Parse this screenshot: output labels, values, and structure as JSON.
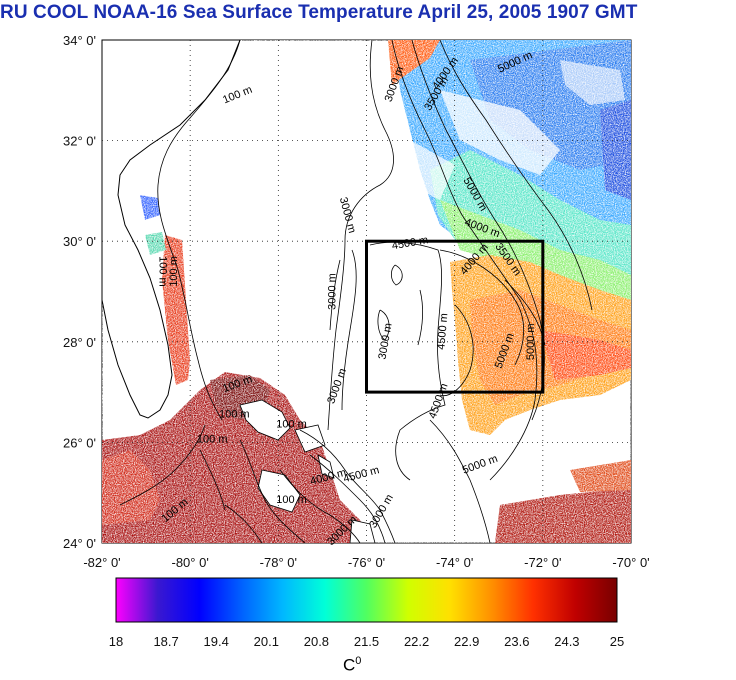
{
  "title": "RU COOL  NOAA-16 Sea Surface Temperature April 25, 2005 1907 GMT",
  "lat_ticks": [
    "34° 0'",
    "32° 0'",
    "30° 0'",
    "28° 0'",
    "26° 0'",
    "24° 0'"
  ],
  "lon_ticks": [
    "-82° 0'",
    "-80° 0'",
    "-78° 0'",
    "-76° 0'",
    "-74° 0'",
    "-72° 0'",
    "-70° 0'"
  ],
  "colorbar": {
    "ticks": [
      "18",
      "18.7",
      "19.4",
      "20.1",
      "20.8",
      "21.5",
      "22.2",
      "22.9",
      "23.6",
      "24.3",
      "25"
    ],
    "unit": "C",
    "unit_sup": "0",
    "min": 18,
    "max": 25,
    "colors": [
      "#ff00ff",
      "#3a18d0",
      "#0000ff",
      "#0060ff",
      "#00b8ff",
      "#00ffd8",
      "#50ff60",
      "#d0ff00",
      "#ffe000",
      "#ff9000",
      "#ff3000",
      "#c00000",
      "#780000"
    ]
  },
  "contour_labels": [
    {
      "text": "100 m",
      "lon": -78.9,
      "lat": 32.85,
      "rot": -22
    },
    {
      "text": "3000 m",
      "lon": -75.3,
      "lat": 33.1,
      "rot": -70
    },
    {
      "text": "4000 m",
      "lon": -74.15,
      "lat": 33.3,
      "rot": -55
    },
    {
      "text": "3500 m",
      "lon": -74.35,
      "lat": 32.9,
      "rot": -60
    },
    {
      "text": "5000 m",
      "lon": -72.6,
      "lat": 33.5,
      "rot": -25
    },
    {
      "text": "5000 m",
      "lon": -73.6,
      "lat": 30.9,
      "rot": 60
    },
    {
      "text": "4000 m",
      "lon": -73.4,
      "lat": 30.2,
      "rot": 20
    },
    {
      "text": "3000 m",
      "lon": -76.5,
      "lat": 30.5,
      "rot": 75
    },
    {
      "text": "4500 m",
      "lon": -75.0,
      "lat": 29.9,
      "rot": -10
    },
    {
      "text": "4000 m",
      "lon": -73.5,
      "lat": 29.6,
      "rot": -50
    },
    {
      "text": "3500 m",
      "lon": -72.85,
      "lat": 29.6,
      "rot": 55
    },
    {
      "text": "100 m",
      "lon": -80.7,
      "lat": 29.4,
      "rot": 90
    },
    {
      "text": "100 m",
      "lon": -80.3,
      "lat": 29.4,
      "rot": -90
    },
    {
      "text": "3000 m",
      "lon": -76.7,
      "lat": 29.0,
      "rot": -90
    },
    {
      "text": "4500 m",
      "lon": -74.2,
      "lat": 28.2,
      "rot": -85
    },
    {
      "text": "5000 m",
      "lon": -72.8,
      "lat": 27.8,
      "rot": -70
    },
    {
      "text": "5000 m",
      "lon": -72.2,
      "lat": 28.0,
      "rot": -90
    },
    {
      "text": "3000 m",
      "lon": -75.5,
      "lat": 28.0,
      "rot": -80
    },
    {
      "text": "3000 m",
      "lon": -76.6,
      "lat": 27.1,
      "rot": -70
    },
    {
      "text": "4500 m",
      "lon": -74.3,
      "lat": 26.8,
      "rot": -70
    },
    {
      "text": "100 m",
      "lon": -78.9,
      "lat": 27.1,
      "rot": -20
    },
    {
      "text": "100 m",
      "lon": -79.0,
      "lat": 26.5,
      "rot": 0
    },
    {
      "text": "100 m",
      "lon": -77.7,
      "lat": 26.3,
      "rot": 0
    },
    {
      "text": "100 m",
      "lon": -79.5,
      "lat": 26.0,
      "rot": 0
    },
    {
      "text": "5000 m",
      "lon": -73.4,
      "lat": 25.5,
      "rot": -20
    },
    {
      "text": "4000 m",
      "lon": -76.85,
      "lat": 25.25,
      "rot": -15
    },
    {
      "text": "4500 m",
      "lon": -76.1,
      "lat": 25.3,
      "rot": -15
    },
    {
      "text": "100 m",
      "lon": -77.7,
      "lat": 24.8,
      "rot": 0
    },
    {
      "text": "100 m",
      "lon": -80.3,
      "lat": 24.6,
      "rot": -40
    },
    {
      "text": "3000 m",
      "lon": -75.6,
      "lat": 24.6,
      "rot": -60
    },
    {
      "text": "3000 m",
      "lon": -76.5,
      "lat": 24.2,
      "rot": -45
    }
  ],
  "study_box": {
    "lon_min": -76,
    "lon_max": -72,
    "lat_min": 27,
    "lat_max": 30
  }
}
